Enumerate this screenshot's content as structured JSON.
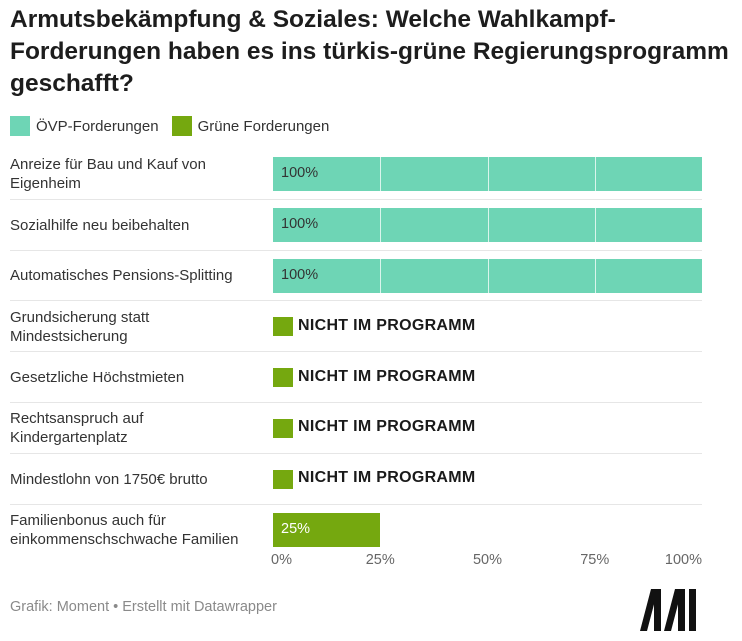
{
  "title": "Armutsbekämpfung & Soziales: Welche Wahlkampf-Forderungen haben es ins türkis-grüne Regierungsprogramm geschafft?",
  "legend": [
    {
      "label": "ÖVP-Forderungen",
      "color": "#6ed5b5"
    },
    {
      "label": "Grüne Forderungen",
      "color": "#75a80f"
    }
  ],
  "colors": {
    "ovp": "#6ed5b5",
    "gruene": "#75a80f",
    "grid": "#e6e6e6"
  },
  "not_in_program_label": "NICHT IM PROGRAMM",
  "footer": "Grafik: Moment • Erstellt mit Datawrapper",
  "logo_icon": "moment-logo-icon",
  "chart_data": {
    "type": "bar",
    "orientation": "horizontal",
    "xlim": [
      0,
      100
    ],
    "x_ticks": [
      "0%",
      "25%",
      "50%",
      "75%",
      "100%"
    ],
    "grid": true,
    "rows": [
      {
        "label": "Anreize für Bau und Kauf von Eigenheim",
        "party": "ÖVP-Forderungen",
        "value": 100,
        "value_label": "100%"
      },
      {
        "label": "Sozialhilfe neu beibehalten",
        "party": "ÖVP-Forderungen",
        "value": 100,
        "value_label": "100%"
      },
      {
        "label": "Automatisches Pensions-Splitting",
        "party": "ÖVP-Forderungen",
        "value": 100,
        "value_label": "100%"
      },
      {
        "label": "Grundsicherung statt Mindestsicherung",
        "party": "Grüne Forderungen",
        "value": 0,
        "value_label": "NICHT IM PROGRAMM"
      },
      {
        "label": "Gesetzliche Höchstmieten",
        "party": "Grüne Forderungen",
        "value": 0,
        "value_label": "NICHT IM PROGRAMM"
      },
      {
        "label": "Rechtsanspruch auf Kindergartenplatz",
        "party": "Grüne Forderungen",
        "value": 0,
        "value_label": "NICHT IM PROGRAMM"
      },
      {
        "label": "Mindestlohn von 1750€ brutto",
        "party": "Grüne Forderungen",
        "value": 0,
        "value_label": "NICHT IM PROGRAMM"
      },
      {
        "label": "Familienbonus auch für einkommenschschwache Familien",
        "party": "Grüne Forderungen",
        "value": 25,
        "value_label": "25%"
      }
    ]
  }
}
